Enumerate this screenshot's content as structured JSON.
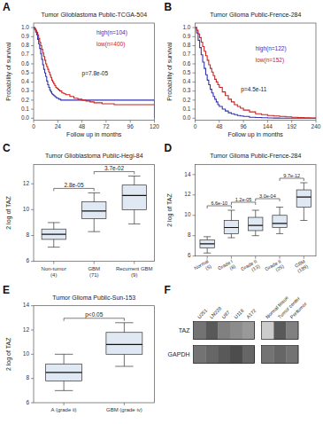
{
  "chart_data": [
    {
      "type": "step",
      "panel_label": "A",
      "title": "Tumor Glioblastoma Public-TCGA-504",
      "xlabel": "Follow up in months",
      "ylabel": "Probability of survival",
      "xlim": [
        0,
        120
      ],
      "ylim": [
        -0.02,
        1.05
      ],
      "xticks": [
        0,
        24,
        48,
        72,
        96,
        120
      ],
      "yticks": [
        {
          "value": 0.0,
          "label": "0.0"
        },
        0.1,
        0.2,
        0.3,
        0.4,
        0.5,
        0.6,
        0.7,
        0.8,
        0.9,
        {
          "value": 1.0,
          "label": "1.0"
        }
      ],
      "grid": false,
      "legend": "upper right",
      "annotations": [
        "p=7.8e-05"
      ],
      "series": [
        {
          "name": "high(n=104)",
          "color": "#3333aa",
          "x": [
            0,
            1,
            2,
            3,
            4,
            5,
            6,
            7,
            8,
            9,
            10,
            11,
            12,
            13,
            14,
            15,
            16,
            17,
            18,
            19,
            20,
            21,
            22,
            23,
            24,
            25,
            26,
            27,
            28,
            29,
            30,
            32,
            36,
            40,
            44,
            48,
            120
          ],
          "values": [
            1.0,
            0.98,
            0.95,
            0.92,
            0.87,
            0.82,
            0.77,
            0.71,
            0.65,
            0.59,
            0.54,
            0.5,
            0.46,
            0.41,
            0.37,
            0.34,
            0.31,
            0.29,
            0.27,
            0.26,
            0.25,
            0.24,
            0.23,
            0.22,
            0.22,
            0.21,
            0.21,
            0.2,
            0.2,
            0.2,
            0.2,
            0.2,
            0.2,
            0.2,
            0.2,
            0.2,
            0.0
          ]
        },
        {
          "name": "low(n=400)",
          "color": "#cc2222",
          "x": [
            0,
            1,
            2,
            3,
            4,
            5,
            6,
            7,
            8,
            9,
            10,
            11,
            12,
            13,
            14,
            15,
            16,
            17,
            18,
            19,
            20,
            21,
            22,
            23,
            24,
            25,
            26,
            28,
            30,
            32,
            36,
            40,
            44,
            48,
            52,
            56,
            60,
            64,
            68,
            72,
            76,
            80,
            84,
            88,
            92,
            96,
            100,
            104,
            108,
            112,
            116,
            120
          ],
          "values": [
            1.0,
            0.99,
            0.97,
            0.95,
            0.92,
            0.88,
            0.84,
            0.8,
            0.76,
            0.72,
            0.68,
            0.64,
            0.6,
            0.57,
            0.54,
            0.51,
            0.48,
            0.45,
            0.42,
            0.4,
            0.38,
            0.36,
            0.34,
            0.33,
            0.32,
            0.31,
            0.3,
            0.28,
            0.27,
            0.26,
            0.24,
            0.22,
            0.21,
            0.2,
            0.19,
            0.18,
            0.17,
            0.17,
            0.16,
            0.16,
            0.16,
            0.15,
            0.15,
            0.15,
            0.15,
            0.15,
            0.15,
            0.15,
            0.15,
            0.15,
            0.15,
            0.15
          ]
        }
      ]
    },
    {
      "type": "step",
      "panel_label": "B",
      "title": "Tumor Glioma Public-Frence-284",
      "xlabel": "Follow up in months",
      "ylabel": "Probability of survival",
      "xlim": [
        0,
        240
      ],
      "ylim": [
        -0.02,
        1.05
      ],
      "xticks": [
        0,
        48,
        96,
        144,
        192,
        240
      ],
      "yticks": [
        {
          "value": 0.0,
          "label": "0.0"
        },
        0.1,
        0.2,
        0.3,
        0.4,
        0.5,
        0.6,
        0.7,
        0.8,
        0.9,
        {
          "value": 1.0,
          "label": "1.0"
        }
      ],
      "grid": false,
      "legend": "center right",
      "annotations": [
        "p=4.5e-11"
      ],
      "series": [
        {
          "name": "high(n=122)",
          "color": "#3333aa",
          "x": [
            0,
            3,
            6,
            9,
            12,
            15,
            18,
            21,
            24,
            27,
            30,
            33,
            36,
            39,
            42,
            45,
            48,
            54,
            60,
            66,
            72,
            78,
            84,
            90,
            96,
            108,
            120,
            132,
            144,
            156,
            168,
            180,
            192,
            204,
            216,
            228,
            240
          ],
          "values": [
            1.0,
            0.94,
            0.86,
            0.78,
            0.7,
            0.62,
            0.55,
            0.48,
            0.42,
            0.37,
            0.32,
            0.28,
            0.24,
            0.21,
            0.18,
            0.15,
            0.13,
            0.1,
            0.08,
            0.06,
            0.05,
            0.04,
            0.03,
            0.025,
            0.02,
            0.01,
            0.008,
            0.005,
            0.003,
            0.002,
            0.001,
            0.001,
            0.001,
            0.001,
            0.001,
            0.001,
            0.001
          ]
        },
        {
          "name": "low(n=152)",
          "color": "#cc2222",
          "x": [
            0,
            3,
            6,
            9,
            12,
            15,
            18,
            21,
            24,
            27,
            30,
            33,
            36,
            39,
            42,
            45,
            48,
            54,
            60,
            66,
            72,
            78,
            84,
            90,
            96,
            108,
            120,
            132,
            144,
            156,
            168,
            180,
            192,
            204,
            216,
            228,
            240
          ],
          "values": [
            1.0,
            0.97,
            0.93,
            0.89,
            0.84,
            0.79,
            0.74,
            0.69,
            0.64,
            0.59,
            0.55,
            0.51,
            0.47,
            0.43,
            0.4,
            0.37,
            0.34,
            0.29,
            0.25,
            0.21,
            0.18,
            0.15,
            0.13,
            0.11,
            0.09,
            0.07,
            0.05,
            0.04,
            0.03,
            0.025,
            0.02,
            0.015,
            0.01,
            0.008,
            0.005,
            0.003,
            0.002
          ]
        }
      ]
    },
    {
      "type": "box",
      "panel_label": "C",
      "title": "Tumor Glioblastoma Public-Hegi-84",
      "ylabel": "2 log of TAZ",
      "categories": [
        "Non-tumor\n(4)",
        "GBM\n(71)",
        "Recurrent GBM\n(9)"
      ],
      "ylim": [
        6,
        13.5
      ],
      "yticks": [
        6,
        8,
        10,
        12
      ],
      "grid": false,
      "boxes": [
        {
          "med": 8.1,
          "q1": 7.7,
          "q3": 8.5,
          "whislo": 7.1,
          "whishi": 9.0
        },
        {
          "med": 9.9,
          "q1": 9.3,
          "q3": 10.6,
          "whislo": 8.3,
          "whishi": 11.3
        },
        {
          "med": 11.1,
          "q1": 10.0,
          "q3": 11.9,
          "whislo": 8.9,
          "whishi": 12.6
        }
      ],
      "pvalues": [
        "2.8e-05",
        "3.7e-02"
      ]
    },
    {
      "type": "box",
      "panel_label": "D",
      "title": "Tumor Glioma Public-Frence-284",
      "ylabel": "2 log of TAZ",
      "categories": [
        "Normal\n(5)",
        "Grade I\n(8)",
        "Grade II\n(13)",
        "Grade II\n(25)",
        "GBM\n(189)"
      ],
      "ylim": [
        6,
        15
      ],
      "yticks": [
        6,
        8,
        10,
        12,
        14
      ],
      "grid": false,
      "boxes": [
        {
          "med": 7.2,
          "q1": 6.8,
          "q3": 7.6,
          "whislo": 6.3,
          "whishi": 7.9
        },
        {
          "med": 8.8,
          "q1": 8.2,
          "q3": 9.5,
          "whislo": 7.8,
          "whishi": 10.5
        },
        {
          "med": 9.0,
          "q1": 8.5,
          "q3": 9.8,
          "whislo": 8.0,
          "whishi": 10.5
        },
        {
          "med": 9.2,
          "q1": 8.8,
          "q3": 10.0,
          "whislo": 8.2,
          "whishi": 10.8
        },
        {
          "med": 11.8,
          "q1": 10.8,
          "q3": 12.5,
          "whislo": 9.5,
          "whishi": 13.2
        }
      ],
      "pvalues": [
        "6.6e-10",
        "1.2e-05",
        "3.0e-04",
        "9.7e-12"
      ]
    },
    {
      "type": "box",
      "panel_label": "E",
      "title": "Tumor Glioma Public-Sun-153",
      "ylabel": "2 log of TAZ",
      "categories": [
        "A (grade ii)",
        "GBM (grade iv)"
      ],
      "ylim": [
        6,
        14
      ],
      "yticks": [
        6,
        8,
        10,
        12,
        14
      ],
      "grid": false,
      "boxes": [
        {
          "med": 8.5,
          "q1": 7.8,
          "q3": 9.2,
          "whislo": 7.0,
          "whishi": 10.0
        },
        {
          "med": 10.8,
          "q1": 10.0,
          "q3": 11.8,
          "whislo": 9.0,
          "whishi": 12.6
        }
      ],
      "pvalues": [
        "p<0.05"
      ]
    },
    {
      "type": "blot",
      "panel_label": "F",
      "row_labels": [
        "TAZ",
        "GAPDH"
      ],
      "categories": [
        "U251",
        "LN228",
        "U87",
        "U118",
        "A172"
      ],
      "cells": [
        [
          0.55,
          0.65,
          0.5,
          0.45,
          0.4
        ],
        [
          0.55,
          0.6,
          0.65,
          0.7,
          0.6
        ]
      ]
    },
    {
      "type": "blot",
      "categories": [
        "Normal tissue",
        "Tumor center",
        "Peritumor"
      ],
      "cells": [
        [
          0.2,
          0.65,
          0.5
        ],
        [
          0.55,
          0.6,
          0.55
        ]
      ]
    }
  ]
}
